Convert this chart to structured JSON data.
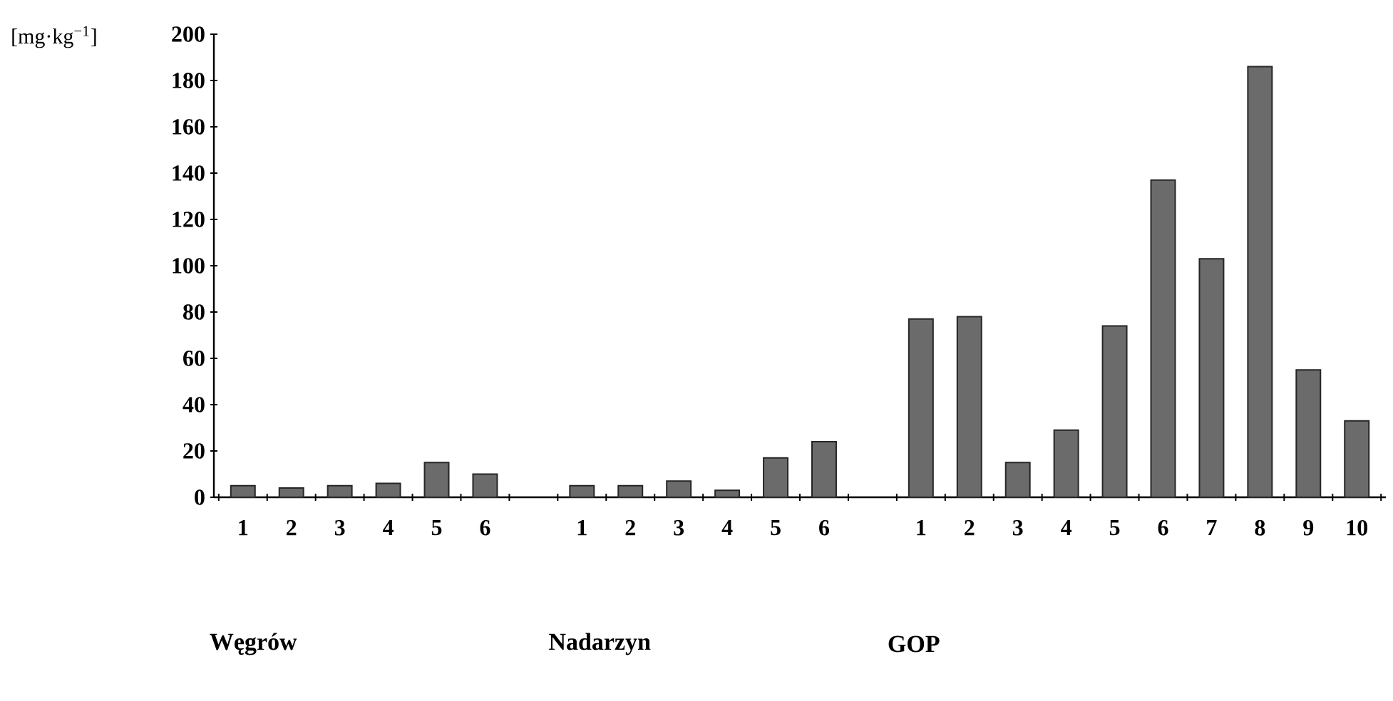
{
  "chart_data": {
    "type": "bar",
    "ylabel": "[mg·kg$^{−1}$]",
    "categories": [
      "1",
      "2",
      "3",
      "4",
      "5",
      "6",
      null,
      "1",
      "2",
      "3",
      "4",
      "5",
      "6",
      null,
      "1",
      "2",
      "3",
      "4",
      "5",
      "6",
      "7",
      "8",
      "9",
      "10"
    ],
    "values": [
      5,
      4,
      5,
      6,
      15,
      10,
      null,
      5,
      5,
      7,
      3,
      17,
      24,
      null,
      77,
      78,
      15,
      29,
      74,
      137,
      103,
      186,
      55,
      33
    ],
    "color": "#6b6b6b",
    "ylim": [
      0,
      200
    ],
    "yticks": [
      0,
      20,
      40,
      60,
      80,
      100,
      120,
      140,
      160,
      180,
      200
    ],
    "annotations": [
      "Węgrów",
      "Nadarzyn",
      "GOP"
    ],
    "tick_labels": true
  }
}
